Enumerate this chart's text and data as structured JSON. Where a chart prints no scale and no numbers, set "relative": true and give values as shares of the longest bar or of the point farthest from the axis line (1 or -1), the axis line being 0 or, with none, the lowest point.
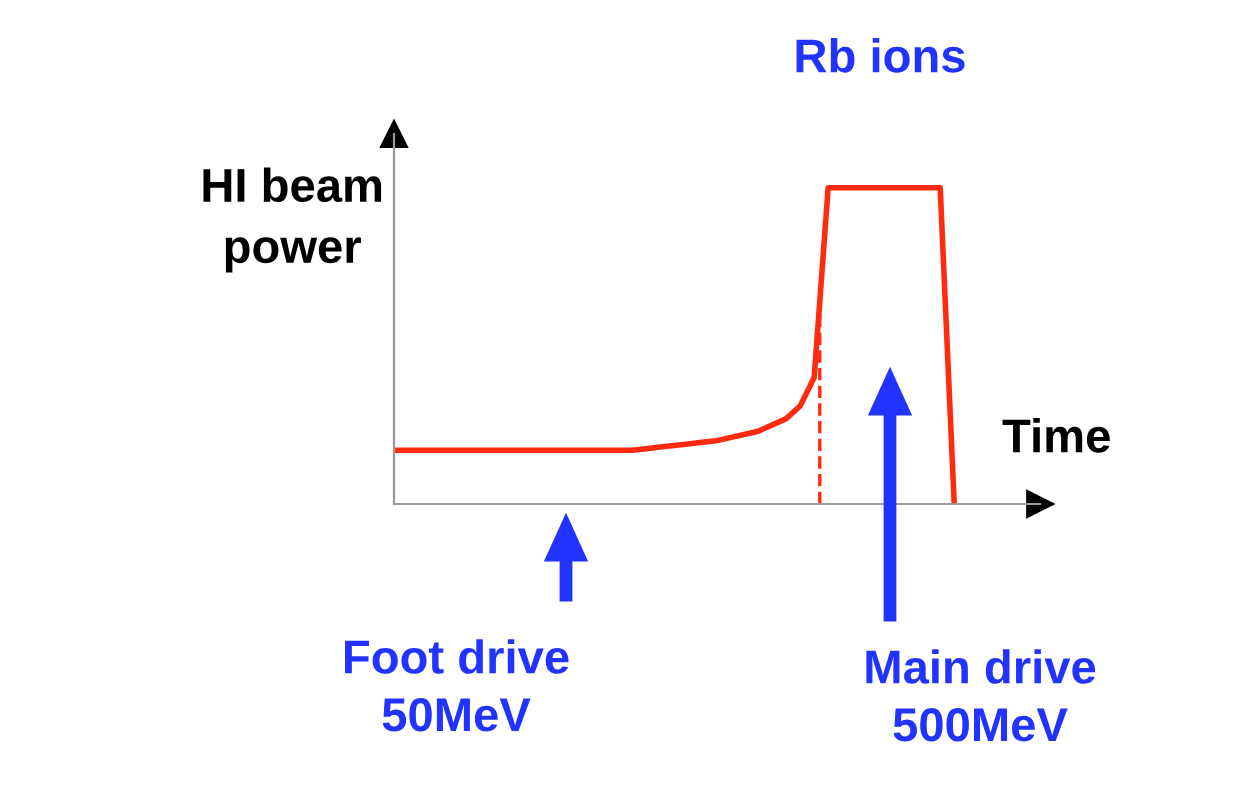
{
  "chart_data": {
    "type": "line",
    "relative": true,
    "title": "Rb ions",
    "ylabel": "HI beam\npower",
    "xlabel": "Time",
    "categories": [
      null,
      null,
      null,
      null,
      null,
      null,
      null,
      null,
      null,
      null,
      null,
      null,
      null,
      null,
      null,
      null,
      null,
      null,
      null,
      null,
      null,
      null,
      null,
      null,
      null,
      null,
      null,
      null,
      null,
      null,
      null,
      null,
      null,
      null,
      null,
      null,
      null,
      null,
      null,
      null,
      null
    ],
    "series": [
      {
        "color": "#ff2a10",
        "values": [
          0.17,
          0.17,
          0.17,
          0.17,
          0.17,
          0.17,
          0.17,
          0.17,
          0.17,
          0.17,
          0.17,
          0.17,
          0.17,
          0.17,
          0.17,
          0.17,
          0.17,
          0.17,
          0.175,
          0.18,
          0.185,
          0.19,
          0.195,
          0.2,
          0.21,
          0.22,
          0.23,
          0.25,
          0.27,
          0.31,
          0.4,
          1,
          1,
          1,
          1,
          1,
          1,
          1,
          1,
          1,
          0
        ]
      }
    ],
    "annotations": [
      "Foot drive\n50MeV",
      "Main drive\n500MeV"
    ],
    "line_style": "solid"
  }
}
